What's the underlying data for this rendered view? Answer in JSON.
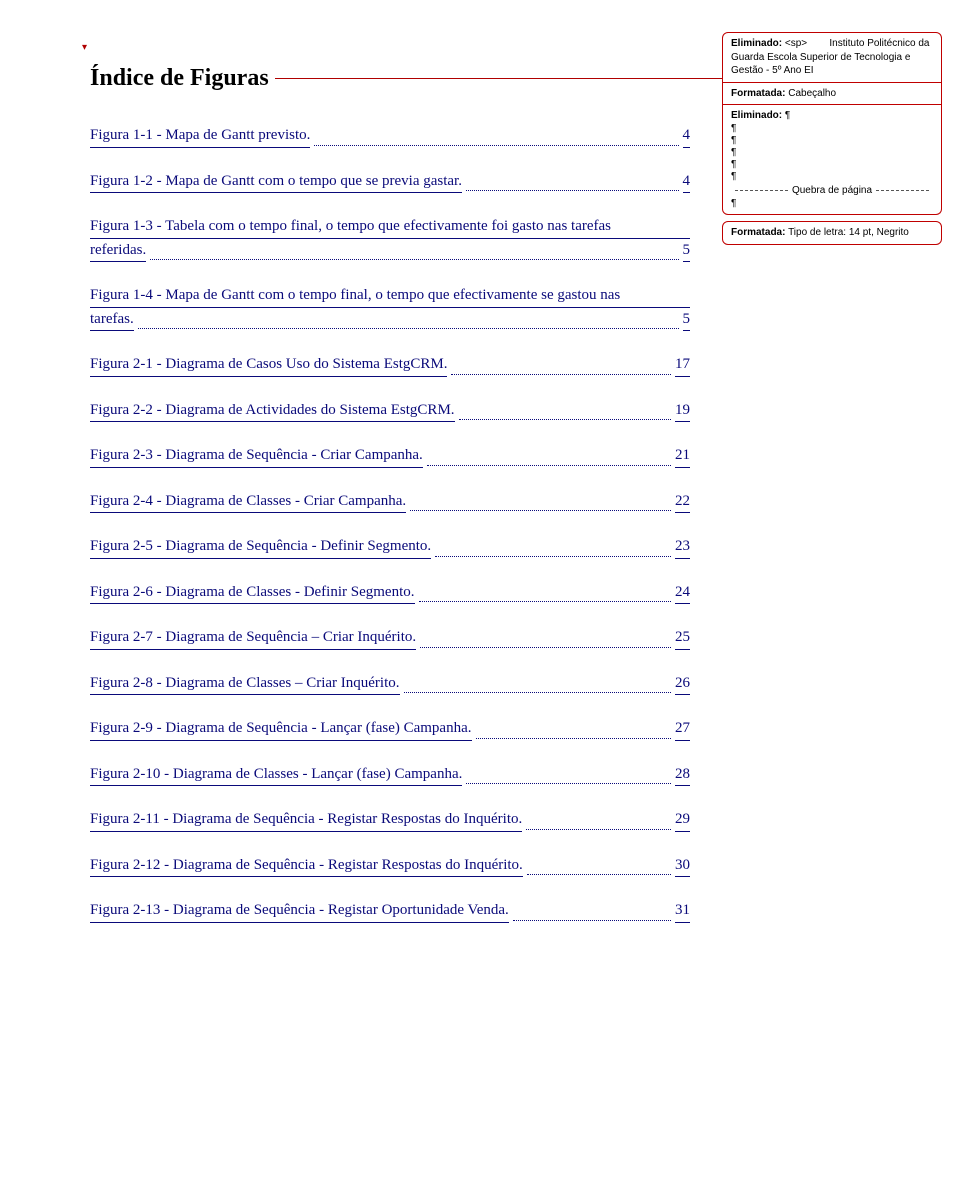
{
  "title": "Índice de Figuras",
  "toc": [
    {
      "label": "Figura 1-1 - Mapa de Gantt previsto.",
      "page": "4",
      "twoLine": false
    },
    {
      "label": "Figura 1-2 - Mapa de Gantt com o tempo que se previa gastar.",
      "page": "4",
      "twoLine": false
    },
    {
      "line1": "Figura 1-3 - Tabela com o tempo final, o tempo que efectivamente foi gasto nas tarefas",
      "label": "referidas.",
      "page": "5",
      "twoLine": true
    },
    {
      "line1": "Figura 1-4 - Mapa de Gantt com o tempo final, o tempo que efectivamente se gastou nas",
      "label": "tarefas.",
      "page": "5",
      "twoLine": true
    },
    {
      "label": "Figura 2-1 - Diagrama de Casos Uso do Sistema EstgCRM.",
      "page": "17",
      "twoLine": false
    },
    {
      "label": "Figura 2-2 - Diagrama de Actividades do Sistema EstgCRM.",
      "page": "19",
      "twoLine": false
    },
    {
      "label": "Figura 2-3 - Diagrama de Sequência - Criar Campanha.",
      "page": "21",
      "twoLine": false
    },
    {
      "label": "Figura 2-4 - Diagrama de Classes - Criar Campanha.",
      "page": "22",
      "twoLine": false
    },
    {
      "label": "Figura 2-5 - Diagrama de Sequência - Definir Segmento.",
      "page": "23",
      "twoLine": false
    },
    {
      "label": "Figura 2-6 - Diagrama de Classes - Definir Segmento.",
      "page": "24",
      "twoLine": false
    },
    {
      "label": "Figura 2-7 - Diagrama de Sequência – Criar Inquérito.",
      "page": "25",
      "twoLine": false
    },
    {
      "label": "Figura 2-8 - Diagrama de Classes – Criar Inquérito.",
      "page": "26",
      "twoLine": false
    },
    {
      "label": "Figura 2-9 - Diagrama de Sequência - Lançar (fase) Campanha.",
      "page": "27",
      "twoLine": false
    },
    {
      "label": "Figura 2-10 - Diagrama de Classes - Lançar (fase) Campanha.",
      "page": "28",
      "twoLine": false
    },
    {
      "label": "Figura 2-11 - Diagrama de Sequência - Registar Respostas do Inquérito.",
      "page": "29",
      "twoLine": false
    },
    {
      "label": "Figura 2-12 - Diagrama de Sequência - Registar Respostas do Inquérito.",
      "page": "30",
      "twoLine": false
    },
    {
      "label": "Figura 2-13 - Diagrama de Sequência - Registar Oportunidade Venda.",
      "page": "31",
      "twoLine": false
    }
  ],
  "callouts": {
    "c1": {
      "prefix": "Eliminado:",
      "sp": "<sp>",
      "body": "Instituto Politécnico da Guarda Escola Superior de Tecnologia e Gestão - 5º Ano EI"
    },
    "c2": {
      "prefix": "Formatada:",
      "body": "Cabeçalho"
    },
    "c3": {
      "prefix": "Eliminado:",
      "pilcrow": "¶",
      "pageBreak": "Quebra de página"
    },
    "c4": {
      "prefix": "Formatada:",
      "body": "Tipo de letra: 14 pt, Negrito"
    }
  },
  "colors": {
    "link": "#0a0a7a",
    "calloutBorder": "#c00000",
    "revision": "#b00000"
  }
}
